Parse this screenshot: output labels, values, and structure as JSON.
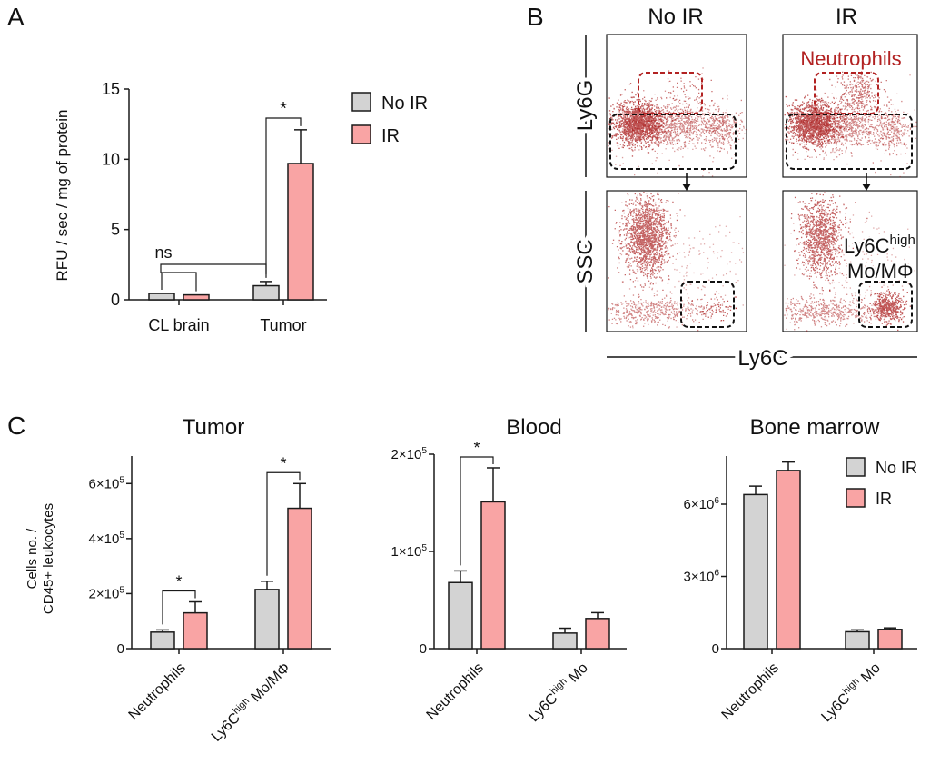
{
  "colors": {
    "noir": "#d3d3d3",
    "ir": "#f9a4a4",
    "stroke": "#1a1a1a",
    "dot": "#a50f0f",
    "gate_red": "#b22222"
  },
  "panel_a": {
    "letter": "A",
    "chart_data": {
      "type": "bar",
      "ylabel": "RFU / sec / mg of protein",
      "ylim": [
        0,
        15
      ],
      "yticks": [
        0,
        5,
        10,
        15
      ],
      "categories": [
        "CL brain",
        "Tumor"
      ],
      "series": [
        {
          "name": "No IR",
          "values": [
            0.45,
            1.0
          ],
          "errors": [
            0.0,
            0.3
          ]
        },
        {
          "name": "IR",
          "values": [
            0.35,
            9.7
          ],
          "errors": [
            0.0,
            2.4
          ]
        }
      ],
      "annotations": [
        "ns",
        "*"
      ],
      "legend": [
        "No IR",
        "IR"
      ]
    }
  },
  "panel_b": {
    "letter": "B",
    "col_titles": [
      "No IR",
      "IR"
    ],
    "row_labels": [
      "Ly6G",
      "SSC"
    ],
    "x_axis_label": "Ly6C",
    "gate_neutrophils": "Neutrophils",
    "gate_ly6c_main": "Ly6C",
    "gate_ly6c_sup": "high",
    "gate_ly6c_line2": "Mo/MΦ"
  },
  "panel_c": {
    "letter": "C",
    "ylabel_line1": "Cells no. /",
    "ylabel_line2": "CD45+ leukocytes",
    "legend": [
      "No IR",
      "IR"
    ],
    "charts": [
      {
        "title": "Tumor",
        "chart_data": {
          "type": "bar",
          "categories": [
            "Neutrophils",
            "Ly6Chigh Mo/MΦ"
          ],
          "cat_main": [
            "Neutrophils",
            "Ly6C"
          ],
          "cat_sup": [
            "",
            "high"
          ],
          "cat_rest": [
            "",
            " Mo/MΦ"
          ],
          "ylim": [
            0,
            700000
          ],
          "yticks": [
            {
              "v": 0,
              "m": "0",
              "e": ""
            },
            {
              "v": 200000,
              "m": "2×10",
              "e": "5"
            },
            {
              "v": 400000,
              "m": "4×10",
              "e": "5"
            },
            {
              "v": 600000,
              "m": "6×10",
              "e": "5"
            }
          ],
          "series": [
            {
              "name": "No IR",
              "values": [
                60000,
                215000
              ],
              "errors": [
                8000,
                30000
              ]
            },
            {
              "name": "IR",
              "values": [
                130000,
                510000
              ],
              "errors": [
                40000,
                90000
              ]
            }
          ],
          "annotations": [
            "*",
            "*"
          ]
        }
      },
      {
        "title": "Blood",
        "chart_data": {
          "type": "bar",
          "categories": [
            "Neutrophils",
            "Ly6Chigh Mo"
          ],
          "cat_main": [
            "Neutrophils",
            "Ly6C"
          ],
          "cat_sup": [
            "",
            "high"
          ],
          "cat_rest": [
            "",
            " Mo"
          ],
          "ylim": [
            0,
            200000
          ],
          "yticks": [
            {
              "v": 0,
              "m": "0",
              "e": ""
            },
            {
              "v": 100000,
              "m": "1×10",
              "e": "5"
            },
            {
              "v": 200000,
              "m": "2×10",
              "e": "5"
            }
          ],
          "series": [
            {
              "name": "No IR",
              "values": [
                68000,
                16000
              ],
              "errors": [
                12000,
                5000
              ]
            },
            {
              "name": "IR",
              "values": [
                151000,
                31000
              ],
              "errors": [
                35000,
                6000
              ]
            }
          ],
          "annotations": [
            "*"
          ]
        }
      },
      {
        "title": "Bone marrow",
        "chart_data": {
          "type": "bar",
          "categories": [
            "Neutrophils",
            "Ly6Chigh Mo"
          ],
          "cat_main": [
            "Neutrophils",
            "Ly6C"
          ],
          "cat_sup": [
            "",
            "high"
          ],
          "cat_rest": [
            "",
            " Mo"
          ],
          "ylim": [
            0,
            8000000
          ],
          "yticks": [
            {
              "v": 0,
              "m": "0",
              "e": ""
            },
            {
              "v": 3000000,
              "m": "3×10",
              "e": "6"
            },
            {
              "v": 6000000,
              "m": "6×10",
              "e": "6"
            }
          ],
          "series": [
            {
              "name": "No IR",
              "values": [
                6400000,
                700000
              ],
              "errors": [
                350000,
                80000
              ]
            },
            {
              "name": "IR",
              "values": [
                7400000,
                800000
              ],
              "errors": [
                350000,
                60000
              ]
            }
          ],
          "annotations": []
        }
      }
    ]
  }
}
